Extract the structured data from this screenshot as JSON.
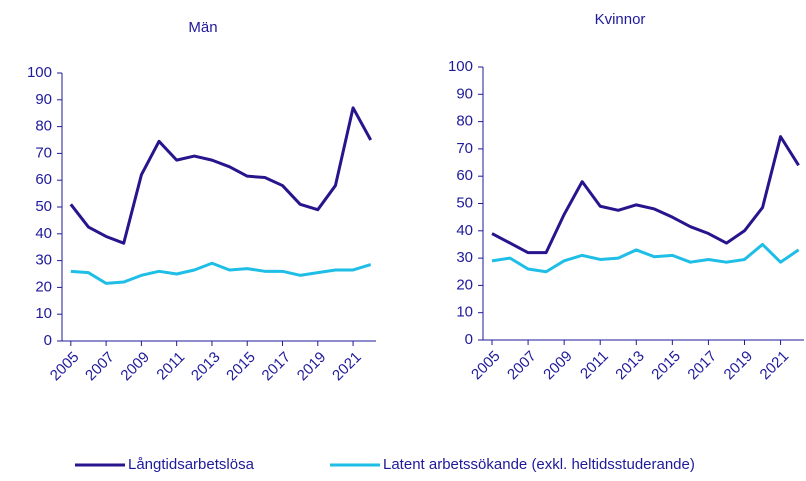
{
  "chart_data": [
    {
      "type": "line",
      "title": "Män",
      "x": [
        2005,
        2006,
        2007,
        2008,
        2009,
        2010,
        2011,
        2012,
        2013,
        2014,
        2015,
        2016,
        2017,
        2018,
        2019,
        2020,
        2021,
        2022
      ],
      "xlim": [
        2004.5,
        2022.3
      ],
      "xticks": [
        2005,
        2007,
        2009,
        2011,
        2013,
        2015,
        2017,
        2019,
        2021
      ],
      "ylim": [
        0,
        100
      ],
      "yticks": [
        0,
        10,
        20,
        30,
        40,
        50,
        60,
        70,
        80,
        90,
        100
      ],
      "series": [
        {
          "name": "Långtidsarbetslösa",
          "color": "#28148c",
          "values": [
            51,
            42.5,
            39,
            36.5,
            62,
            74.5,
            67.5,
            69,
            67.5,
            65,
            61.5,
            61,
            58,
            51,
            49,
            58,
            87,
            75
          ]
        },
        {
          "name": "Latent arbetssökande (exkl. heltidsstuderande)",
          "color": "#1ebee6",
          "values": [
            26,
            25.5,
            21.5,
            22,
            24.5,
            26,
            25,
            26.5,
            29,
            26.5,
            27,
            26,
            26,
            24.5,
            25.5,
            26.5,
            26.5,
            28.5
          ]
        }
      ]
    },
    {
      "type": "line",
      "title": "Kvinnor",
      "x": [
        2005,
        2006,
        2007,
        2008,
        2009,
        2010,
        2011,
        2012,
        2013,
        2014,
        2015,
        2016,
        2017,
        2018,
        2019,
        2020,
        2021,
        2022
      ],
      "xlim": [
        2004.5,
        2022.3
      ],
      "xticks": [
        2005,
        2007,
        2009,
        2011,
        2013,
        2015,
        2017,
        2019,
        2021
      ],
      "ylim": [
        0,
        100
      ],
      "yticks": [
        0,
        10,
        20,
        30,
        40,
        50,
        60,
        70,
        80,
        90,
        100
      ],
      "series": [
        {
          "name": "Långtidsarbetslösa",
          "color": "#28148c",
          "values": [
            39,
            35.5,
            32,
            32,
            46,
            58,
            49,
            47.5,
            49.5,
            48,
            45,
            41.5,
            39,
            35.5,
            40,
            48.5,
            74.5,
            64
          ]
        },
        {
          "name": "Latent arbetssökande (exkl. heltidsstuderande)",
          "color": "#1ebee6",
          "values": [
            29,
            30,
            26,
            25,
            29,
            31,
            29.5,
            30,
            33,
            30.5,
            31,
            28.5,
            29.5,
            28.5,
            29.5,
            35,
            28.5,
            33
          ]
        }
      ]
    }
  ]
}
